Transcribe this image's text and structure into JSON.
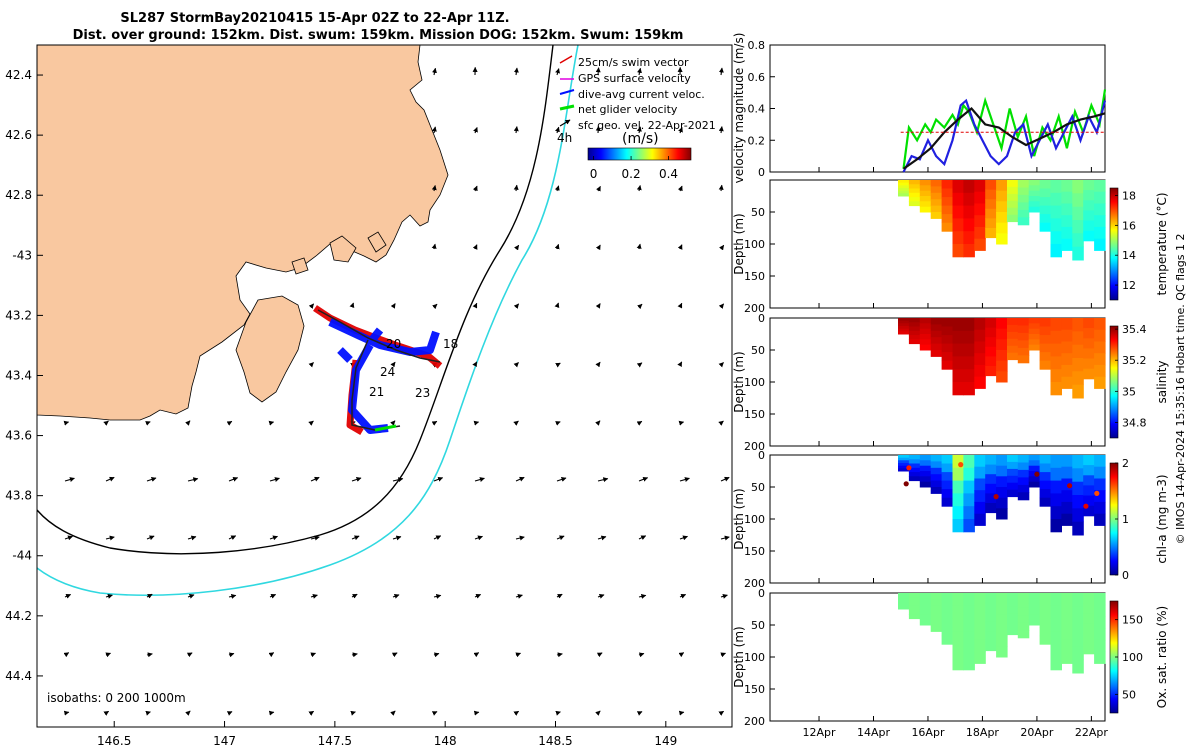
{
  "title": {
    "line1": "SL287 StormBay20210415 15-Apr 02Z to 22-Apr 11Z.",
    "line2": "Dist. over ground: 152km. Dist. swum: 159km. Mission DOG: 152km. Swum: 159km"
  },
  "colors": {
    "land": "#f9c8a0",
    "track_red": "#e00000",
    "track_blue": "#0010ff",
    "cyan_isobath": "#30d8e0"
  },
  "chart_data": [
    {
      "id": "map",
      "type": "map",
      "lat_ticks": [
        "42.4",
        "42.6",
        "42.8",
        "-43",
        "43.2",
        "43.4",
        "43.6",
        "43.8",
        "-44",
        "44.2",
        "44.4"
      ],
      "lat_values": [
        -42.4,
        -42.6,
        -42.8,
        -43.0,
        -43.2,
        -43.4,
        -43.6,
        -43.8,
        -44.0,
        -44.2,
        -44.4
      ],
      "lon_ticks": [
        "146.5",
        "147",
        "147.5",
        "148",
        "148.5",
        "149"
      ],
      "lon_values": [
        146.5,
        147.0,
        147.5,
        148.0,
        148.5,
        149.0
      ],
      "lon_range": [
        146.15,
        149.3
      ],
      "lat_range": [
        -44.57,
        -42.3
      ],
      "legend": {
        "position": "top-right",
        "items": [
          "25cm/s swim vector",
          "GPS surface velocity",
          "dive-avg current veloc.",
          "net glider velocity",
          "sfc geo. vel. 22-Apr-2021"
        ],
        "stray_label": "4h",
        "colorbar_title": "(m/s)",
        "colorbar_ticks": [
          "0",
          "0.2",
          "0.4"
        ],
        "colorbar_values": [
          0,
          0.2,
          0.4
        ],
        "colorbar_range": [
          -0.03,
          0.52
        ]
      },
      "track_day_labels": [
        "20",
        "18",
        "24",
        "21",
        "23"
      ],
      "isobaths_label": "isobaths: 0   200  1000m"
    },
    {
      "id": "velocity",
      "type": "line",
      "ylabel": "velocity magnitude (m/s)",
      "ylim": [
        0,
        0.8
      ],
      "yticks": [
        "0",
        "0.2",
        "0.4",
        "0.6",
        "0.8"
      ],
      "xlim_days": [
        10.2,
        22.5
      ],
      "series": [
        {
          "name": "net glider velocity",
          "color": "#00e000",
          "x": [
            15.1,
            15.3,
            15.6,
            15.9,
            16.1,
            16.3,
            16.6,
            16.9,
            17.1,
            17.3,
            17.5,
            17.8,
            18.1,
            18.4,
            18.7,
            19.0,
            19.3,
            19.6,
            19.9,
            20.2,
            20.5,
            20.8,
            21.1,
            21.4,
            21.7,
            22.0,
            22.3,
            22.5
          ],
          "values": [
            0.02,
            0.28,
            0.2,
            0.3,
            0.25,
            0.33,
            0.28,
            0.36,
            0.3,
            0.42,
            0.38,
            0.25,
            0.45,
            0.3,
            0.15,
            0.4,
            0.22,
            0.35,
            0.1,
            0.28,
            0.2,
            0.35,
            0.15,
            0.38,
            0.25,
            0.42,
            0.3,
            0.52
          ]
        },
        {
          "name": "dive-avg current veloc.",
          "color": "#2020e0",
          "x": [
            15.1,
            15.4,
            15.7,
            16.0,
            16.3,
            16.6,
            16.9,
            17.2,
            17.4,
            17.7,
            18.0,
            18.3,
            18.6,
            18.9,
            19.2,
            19.5,
            19.8,
            20.1,
            20.4,
            20.7,
            21.0,
            21.3,
            21.6,
            21.9,
            22.2,
            22.5
          ],
          "values": [
            0.0,
            0.1,
            0.08,
            0.2,
            0.1,
            0.05,
            0.2,
            0.42,
            0.45,
            0.3,
            0.2,
            0.1,
            0.05,
            0.1,
            0.25,
            0.3,
            0.1,
            0.2,
            0.3,
            0.15,
            0.25,
            0.35,
            0.2,
            0.35,
            0.25,
            0.45
          ]
        },
        {
          "name": "GPS surface velocity",
          "color": "#111111",
          "x": [
            15.1,
            15.6,
            16.1,
            16.6,
            17.1,
            17.6,
            18.1,
            18.6,
            19.1,
            19.6,
            20.1,
            20.6,
            21.1,
            21.6,
            22.1,
            22.5
          ],
          "values": [
            0.02,
            0.08,
            0.15,
            0.25,
            0.33,
            0.4,
            0.3,
            0.28,
            0.22,
            0.17,
            0.21,
            0.25,
            0.3,
            0.33,
            0.35,
            0.37
          ]
        },
        {
          "name": "swim ref",
          "color": "#e00000",
          "x": [
            15.0,
            22.5
          ],
          "values": [
            0.25,
            0.25
          ]
        }
      ],
      "xticks": [
        "12Apr",
        "14Apr",
        "16Apr",
        "18Apr",
        "20Apr",
        "22Apr"
      ],
      "xtick_days": [
        12,
        14,
        16,
        18,
        20,
        22
      ]
    },
    {
      "id": "temperature",
      "type": "heatmap",
      "ylabel": "Depth (m)",
      "clabel": "temperature (°C)",
      "yticks": [
        "50",
        "100",
        "150",
        "200"
      ],
      "ytick_values": [
        50,
        100,
        150,
        200
      ],
      "ylim": [
        0,
        200
      ],
      "cticks": [
        "12",
        "14",
        "16",
        "18"
      ],
      "ctick_values": [
        12,
        14,
        16,
        18
      ],
      "clim": [
        11,
        18.5
      ],
      "xticks": [
        "12Apr",
        "14Apr",
        "16Apr",
        "18Apr",
        "20Apr",
        "22Apr"
      ],
      "xtick_days": [
        12,
        14,
        16,
        18,
        20,
        22
      ],
      "profile_days": [
        15.1,
        15.5,
        15.9,
        16.3,
        16.7,
        17.1,
        17.5,
        17.9,
        18.3,
        18.7,
        19.1,
        19.5,
        19.9,
        20.3,
        20.7,
        21.1,
        21.5,
        21.9,
        22.3
      ],
      "profile_max_depth": [
        25,
        40,
        50,
        60,
        80,
        120,
        120,
        110,
        90,
        100,
        65,
        70,
        50,
        80,
        120,
        110,
        125,
        95,
        110
      ],
      "profile_values": [
        15.8,
        16.2,
        16.5,
        16.8,
        17.3,
        17.8,
        18.0,
        17.8,
        17.0,
        16.4,
        15.6,
        15.0,
        14.8,
        14.6,
        14.5,
        14.6,
        14.8,
        14.6,
        14.5
      ]
    },
    {
      "id": "salinity",
      "type": "heatmap",
      "ylabel": "Depth (m)",
      "clabel": "salinity",
      "yticks": [
        "0",
        "50",
        "100",
        "150",
        "200"
      ],
      "ytick_values": [
        0,
        50,
        100,
        150,
        200
      ],
      "ylim": [
        0,
        200
      ],
      "cticks": [
        "34.8",
        "35",
        "35.2",
        "35.4"
      ],
      "ctick_values": [
        34.8,
        35.0,
        35.2,
        35.4
      ],
      "clim": [
        34.7,
        35.42
      ],
      "xticks": [
        "12Apr",
        "14Apr",
        "16Apr",
        "18Apr",
        "20Apr",
        "22Apr"
      ],
      "xtick_days": [
        12,
        14,
        16,
        18,
        20,
        22
      ],
      "profile_days": [
        15.1,
        15.5,
        15.9,
        16.3,
        16.7,
        17.1,
        17.5,
        17.9,
        18.3,
        18.7,
        19.1,
        19.5,
        19.9,
        20.3,
        20.7,
        21.1,
        21.5,
        21.9,
        22.3
      ],
      "profile_max_depth": [
        25,
        40,
        50,
        60,
        80,
        120,
        120,
        110,
        90,
        100,
        65,
        70,
        50,
        80,
        120,
        110,
        125,
        95,
        110
      ],
      "profile_values": [
        35.4,
        35.4,
        35.38,
        35.4,
        35.4,
        35.4,
        35.4,
        35.38,
        35.36,
        35.33,
        35.3,
        35.3,
        35.29,
        35.29,
        35.28,
        35.28,
        35.27,
        35.28,
        35.27
      ]
    },
    {
      "id": "chla",
      "type": "heatmap",
      "ylabel": "Depth (m)",
      "clabel": "chl-a (mg m-3)",
      "yticks": [
        "0",
        "50",
        "100",
        "150",
        "200"
      ],
      "ytick_values": [
        0,
        50,
        100,
        150,
        200
      ],
      "ylim": [
        0,
        200
      ],
      "cticks": [
        "0",
        "1",
        "2"
      ],
      "ctick_values": [
        0,
        1,
        2
      ],
      "clim": [
        0,
        2
      ],
      "xticks": [
        "12Apr",
        "14Apr",
        "16Apr",
        "18Apr",
        "20Apr",
        "22Apr"
      ],
      "xtick_days": [
        12,
        14,
        16,
        18,
        20,
        22
      ],
      "profile_days": [
        15.1,
        15.5,
        15.9,
        16.3,
        16.7,
        17.1,
        17.5,
        17.9,
        18.3,
        18.7,
        19.1,
        19.5,
        19.9,
        20.3,
        20.7,
        21.1,
        21.5,
        21.9,
        22.3
      ],
      "profile_max_depth": [
        25,
        40,
        50,
        60,
        80,
        120,
        120,
        110,
        90,
        100,
        65,
        70,
        50,
        80,
        120,
        110,
        125,
        95,
        110
      ],
      "profile_values": [
        0.55,
        0.5,
        0.45,
        0.5,
        0.55,
        1.05,
        0.8,
        0.55,
        0.5,
        0.45,
        0.55,
        0.5,
        0.45,
        0.5,
        0.45,
        0.45,
        0.5,
        0.55,
        0.5
      ],
      "hotspots": [
        {
          "day": 15.2,
          "depth": 45,
          "v": 2.0
        },
        {
          "day": 15.3,
          "depth": 20,
          "v": 1.7
        },
        {
          "day": 17.2,
          "depth": 15,
          "v": 1.6
        },
        {
          "day": 18.5,
          "depth": 65,
          "v": 1.9
        },
        {
          "day": 20.0,
          "depth": 30,
          "v": 2.0
        },
        {
          "day": 21.2,
          "depth": 48,
          "v": 1.9
        },
        {
          "day": 21.8,
          "depth": 80,
          "v": 1.8
        },
        {
          "day": 22.2,
          "depth": 60,
          "v": 1.6
        }
      ]
    },
    {
      "id": "oxygen",
      "type": "heatmap",
      "ylabel": "Depth (m)",
      "clabel": "Ox. sat. ratio (%)",
      "yticks": [
        "0",
        "50",
        "100",
        "150",
        "200"
      ],
      "ytick_values": [
        0,
        50,
        100,
        150,
        200
      ],
      "ylim": [
        0,
        200
      ],
      "cticks": [
        "50",
        "100",
        "150"
      ],
      "ctick_values": [
        50,
        100,
        150
      ],
      "clim": [
        25,
        175
      ],
      "xticks": [
        "12Apr",
        "14Apr",
        "16Apr",
        "18Apr",
        "20Apr",
        "22Apr"
      ],
      "xtick_days": [
        12,
        14,
        16,
        18,
        20,
        22
      ],
      "profile_days": [
        15.1,
        15.5,
        15.9,
        16.3,
        16.7,
        17.1,
        17.5,
        17.9,
        18.3,
        18.7,
        19.1,
        19.5,
        19.9,
        20.3,
        20.7,
        21.1,
        21.5,
        21.9,
        22.3
      ],
      "profile_max_depth": [
        25,
        40,
        50,
        60,
        80,
        120,
        120,
        110,
        90,
        100,
        65,
        70,
        50,
        80,
        120,
        110,
        125,
        95,
        110
      ],
      "profile_values": [
        98,
        99,
        98,
        99,
        98,
        99,
        98,
        99,
        98,
        99,
        98,
        99,
        98,
        99,
        98,
        99,
        98,
        99,
        98
      ]
    }
  ],
  "footer_note": "© IMOS 14-Apr-2024 15:35:16 Hobart time. QC flags 1  2"
}
